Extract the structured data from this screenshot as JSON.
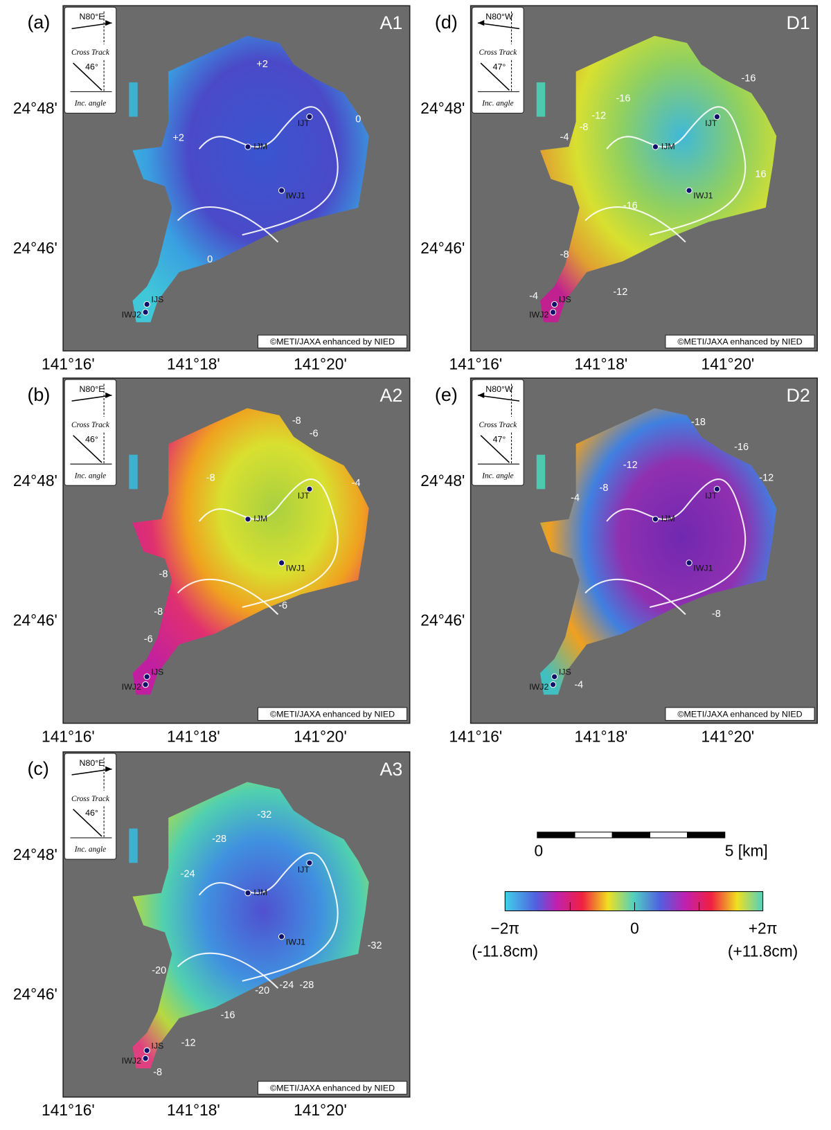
{
  "panels": [
    {
      "label": "(a)",
      "name": "A1",
      "direction": "N80°E",
      "track": "Cross Track",
      "angle": "46°",
      "incidence": "Inc. angle",
      "lat_labels": [
        "24°48'",
        "24°46'"
      ],
      "lon_labels": [
        "141°16'",
        "141°18'",
        "141°20'"
      ],
      "stations": [
        "IJT",
        "IJM",
        "IWJ1",
        "IJS",
        "IWJ2"
      ],
      "contours": [
        "+2",
        "+2",
        "0",
        "0"
      ],
      "credit": "©METI/JAXA enhanced by NIED"
    },
    {
      "label": "(b)",
      "name": "A2",
      "direction": "N80°E",
      "track": "Cross Track",
      "angle": "46°",
      "incidence": "Inc. angle",
      "lat_labels": [
        "24°48'",
        "24°46'"
      ],
      "lon_labels": [
        "141°16'",
        "141°18'",
        "141°20'"
      ],
      "stations": [
        "IJT",
        "IJM",
        "IWJ1",
        "IJS",
        "IWJ2"
      ],
      "contours": [
        "-8",
        "-6",
        "-4",
        "-8",
        "-8",
        "-8",
        "-6",
        "-6"
      ],
      "credit": "©METI/JAXA enhanced by NIED"
    },
    {
      "label": "(c)",
      "name": "A3",
      "direction": "N80°E",
      "track": "Cross Track",
      "angle": "46°",
      "incidence": "Inc. angle",
      "lat_labels": [
        "24°48'",
        "24°46'"
      ],
      "lon_labels": [
        "141°16'",
        "141°18'",
        "141°20'"
      ],
      "stations": [
        "IJT",
        "IJM",
        "IWJ1",
        "IJS",
        "IWJ2"
      ],
      "contours": [
        "-32",
        "-28",
        "-24",
        "-32",
        "-20",
        "-20",
        "-24",
        "-28",
        "-16",
        "-12",
        "-8"
      ],
      "credit": "©METI/JAXA enhanced by NIED"
    },
    {
      "label": "(d)",
      "name": "D1",
      "direction": "N80°W",
      "track": "Cross Track",
      "angle": "47°",
      "incidence": "Inc. angle",
      "lat_labels": [
        "24°48'",
        "24°46'"
      ],
      "lon_labels": [
        "141°16'",
        "141°18'",
        "141°20'"
      ],
      "stations": [
        "IJT",
        "IJM",
        "IWJ1",
        "IJS",
        "IWJ2"
      ],
      "contours": [
        "-16",
        "-16",
        "-12",
        "-8",
        "-4",
        "16",
        "-16",
        "-8",
        "-12",
        "-4"
      ],
      "credit": "©METI/JAXA enhanced by NIED"
    },
    {
      "label": "(e)",
      "name": "D2",
      "direction": "N80°W",
      "track": "Cross Track",
      "angle": "47°",
      "incidence": "Inc. angle",
      "lat_labels": [
        "24°48'",
        "24°46'"
      ],
      "lon_labels": [
        "141°16'",
        "141°18'",
        "141°20'"
      ],
      "stations": [
        "IJT",
        "IJM",
        "IWJ1",
        "IJS",
        "IWJ2"
      ],
      "contours": [
        "-18",
        "-16",
        "-12",
        "-12",
        "-8",
        "-4",
        "-8",
        "-4"
      ],
      "credit": "©METI/JAXA enhanced by NIED"
    }
  ],
  "scale_bar": {
    "labels": [
      "0",
      "5 [km]"
    ]
  },
  "colorbar": {
    "labels": [
      "−2π",
      "0",
      "+2π"
    ],
    "sublabels": [
      "(-11.8cm)",
      "(+11.8cm)"
    ]
  }
}
